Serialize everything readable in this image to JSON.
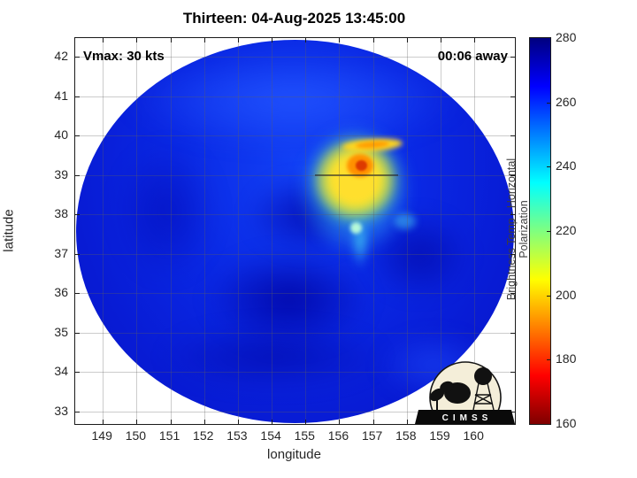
{
  "chart_data": {
    "type": "heatmap",
    "title": "Thirteen: 04-Aug-2025 13:45:00",
    "storm": {
      "name": "Thirteen",
      "datetime": "04-Aug-2025 13:45:00",
      "vmax_label": "Vmax: 30 kts",
      "vmax_kts": 30,
      "time_offset_label": "00:06 away"
    },
    "xlabel": "longitude",
    "ylabel": "latitude",
    "x_ticks": [
      149,
      150,
      151,
      152,
      153,
      154,
      155,
      156,
      157,
      158,
      159,
      160
    ],
    "y_ticks": [
      42,
      41,
      40,
      39,
      38,
      37,
      36,
      35,
      34,
      33
    ],
    "xlim": [
      148.2,
      161.2
    ],
    "ylim": [
      32.7,
      42.5
    ],
    "grid": true,
    "legend_position": "none",
    "colorbar": {
      "label": "Brightness Temp - Horizontal Polarization",
      "ticks": [
        280,
        260,
        240,
        220,
        200,
        180,
        160
      ],
      "range": [
        160,
        280
      ],
      "colormap": "reversed jet (160 dark red, 200 yellow, 240 cyan, 280 dark navy)",
      "stops_bottom_to_top": [
        "#7f0000",
        "#ff0000",
        "#ffff00",
        "#00ffff",
        "#0000ff",
        "#00007f"
      ]
    },
    "swath": {
      "shape": "circular microwave scan footprint",
      "center_lon": 154.7,
      "center_lat": 37.4,
      "radius_lon_deg": 6.5,
      "radius_lat_deg": 4.8,
      "background_tb_K": 258
    },
    "features": [
      {
        "label": "warm-core convective burst (yellow-orange blob, red center)",
        "lon": 156.5,
        "lat": 39.2,
        "min_tb_K": 185
      },
      {
        "label": "yellow streak on north edge of burst",
        "lon_range": [
          156.1,
          157.7
        ],
        "lat": 39.7,
        "tb_K": 205
      },
      {
        "label": "cyan cold fringe around burst",
        "lon_range": [
          155.6,
          157.6
        ],
        "lat_range": [
          38.4,
          39.9
        ],
        "tb_K": 235
      },
      {
        "label": "narrow cool tail south of burst",
        "lon": 156.5,
        "lat_range": [
          37.6,
          38.4
        ],
        "tb_K": 240
      },
      {
        "label": "dark-blue spiral banding near vortex center",
        "lon": 154.0,
        "lat": 36.2,
        "tb_K": 268
      }
    ],
    "logo_text": "CIMSS"
  }
}
